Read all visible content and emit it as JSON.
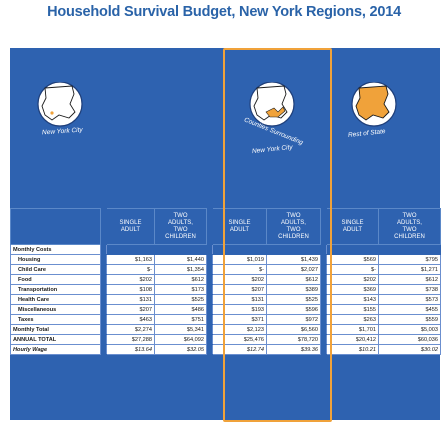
{
  "title": "Household Survival Budget, New York Regions, 2014",
  "regions": [
    {
      "name": "New York City",
      "key": "nyc"
    },
    {
      "name": "Counties Surrounding New York City",
      "key": "surrounding"
    },
    {
      "name": "Rest of State",
      "key": "rest"
    }
  ],
  "region_labels": {
    "nyc": "New York City",
    "surrounding_1": "Counties Surrounding",
    "surrounding_2": "New York City",
    "rest": "Rest of State"
  },
  "colors": {
    "panel": "#2e62b0",
    "highlight": "#f0a23a",
    "map_fill": "#f0a23a",
    "circle": "#ffffff"
  },
  "chart_data": {
    "type": "table",
    "title": "Household Survival Budget, New York Regions, 2014",
    "column_groups": [
      "New York City",
      "Counties Surrounding New York City",
      "Rest of State"
    ],
    "columns": [
      "SINGLE ADULT",
      "TWO ADULTS, TWO CHILDREN",
      "SINGLE ADULT",
      "TWO ADULTS, TWO CHILDREN",
      "SINGLE ADULT",
      "TWO ADULTS, TWO CHILDREN"
    ],
    "header_lines": [
      [
        "SINGLE",
        "ADULT"
      ],
      [
        "TWO",
        "ADULTS,",
        "TWO",
        "CHILDREN"
      ],
      [
        "SINGLE",
        "ADULT"
      ],
      [
        "TWO",
        "ADULTS,",
        "TWO",
        "CHILDREN"
      ],
      [
        "SINGLE",
        "ADULT"
      ],
      [
        "TWO",
        "ADULTS,",
        "TWO",
        "CHILDREN"
      ]
    ],
    "section_label": "Monthly Costs",
    "rows": [
      {
        "label": "Housing",
        "values": [
          "$1,163",
          "$1,440",
          "$1,019",
          "$1,439",
          "$569",
          "$795"
        ]
      },
      {
        "label": "Child Care",
        "values": [
          "$-",
          "$1,354",
          "$-",
          "$2,027",
          "$-",
          "$1,271"
        ]
      },
      {
        "label": "Food",
        "values": [
          "$202",
          "$612",
          "$202",
          "$612",
          "$202",
          "$612"
        ]
      },
      {
        "label": "Transportation",
        "values": [
          "$108",
          "$173",
          "$207",
          "$389",
          "$369",
          "$738"
        ]
      },
      {
        "label": "Health Care",
        "values": [
          "$131",
          "$525",
          "$131",
          "$525",
          "$143",
          "$573"
        ]
      },
      {
        "label": "Miscellaneous",
        "values": [
          "$207",
          "$486",
          "$193",
          "$596",
          "$155",
          "$455"
        ]
      },
      {
        "label": "Taxes",
        "values": [
          "$463",
          "$751",
          "$371",
          "$972",
          "$263",
          "$559"
        ]
      },
      {
        "label": "Monthly Total",
        "values": [
          "$2,274",
          "$5,341",
          "$2,123",
          "$6,560",
          "$1,701",
          "$5,003"
        ]
      },
      {
        "label": "ANNUAL TOTAL",
        "values": [
          "$27,288",
          "$64,092",
          "$25,476",
          "$78,720",
          "$20,412",
          "$60,036"
        ]
      },
      {
        "label": "Hourly Wage",
        "values": [
          "$13.64",
          "$32.05",
          "$12.74",
          "$39.36",
          "$10.21",
          "$30.02"
        ]
      }
    ]
  }
}
